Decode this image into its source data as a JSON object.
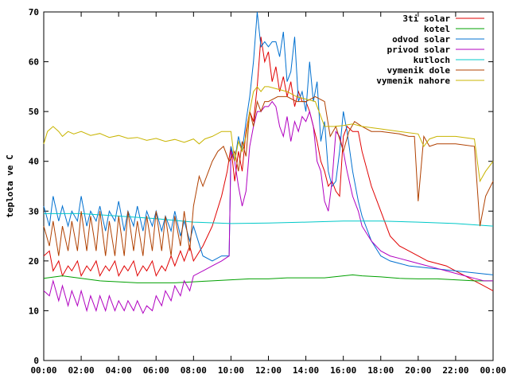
{
  "chart_data": {
    "type": "line",
    "title": "",
    "xlabel": "",
    "ylabel": "teplota ve C",
    "xlim": [
      0,
      24
    ],
    "ylim": [
      0,
      70
    ],
    "grid": false,
    "legend_position": "top-right",
    "x_ticks": [
      "00:00",
      "02:00",
      "04:00",
      "06:00",
      "08:00",
      "10:00",
      "12:00",
      "14:00",
      "16:00",
      "18:00",
      "20:00",
      "22:00",
      "00:00"
    ],
    "y_ticks": [
      "0",
      "10",
      "20",
      "30",
      "40",
      "50",
      "60",
      "70"
    ],
    "series": [
      {
        "name": "3ti solar",
        "color": "#e00000",
        "x": [
          0,
          0.3,
          0.5,
          0.8,
          1.0,
          1.3,
          1.5,
          1.8,
          2.0,
          2.3,
          2.5,
          2.8,
          3.0,
          3.3,
          3.5,
          3.8,
          4.0,
          4.3,
          4.5,
          4.8,
          5.0,
          5.3,
          5.5,
          5.8,
          6.0,
          6.3,
          6.5,
          6.8,
          7.0,
          7.3,
          7.5,
          7.8,
          8.0,
          8.5,
          9.0,
          9.5,
          9.8,
          10.0,
          10.2,
          10.4,
          10.6,
          10.8,
          11.0,
          11.2,
          11.4,
          11.6,
          11.8,
          12.0,
          12.2,
          12.4,
          12.6,
          12.8,
          13.0,
          13.2,
          13.4,
          13.6,
          13.8,
          14.0,
          14.2,
          14.4,
          14.6,
          14.8,
          15.0,
          15.2,
          15.4,
          15.6,
          15.8,
          16.0,
          16.2,
          16.5,
          16.8,
          17.0,
          17.5,
          18.0,
          18.5,
          19.0,
          19.5,
          20.0,
          20.5,
          21.0,
          21.5,
          22.0,
          22.5,
          23.0,
          23.5,
          24.0
        ],
        "y": [
          21,
          22,
          18,
          20,
          17,
          19,
          18,
          20,
          17,
          19,
          18,
          20,
          17,
          19,
          18,
          20,
          17,
          19,
          18,
          20,
          17,
          19,
          18,
          20,
          17,
          19,
          18,
          21,
          19,
          22,
          20,
          23,
          20,
          23,
          27,
          33,
          38,
          43,
          36,
          42,
          38,
          46,
          50,
          48,
          55,
          65,
          60,
          62,
          56,
          59,
          54,
          57,
          53,
          56,
          51,
          54,
          52,
          52,
          50,
          47,
          44,
          40,
          38,
          35,
          36,
          34,
          33,
          45,
          47,
          46,
          46,
          42,
          35,
          30,
          25,
          23,
          22,
          21,
          20,
          19.5,
          19,
          18,
          17,
          16,
          15,
          14
        ]
      },
      {
        "name": "kotel",
        "color": "#00a000",
        "x": [
          0,
          1,
          2,
          3,
          4,
          5,
          6,
          7,
          8,
          9,
          10,
          11,
          12,
          13,
          14,
          15,
          16,
          16.5,
          17,
          18,
          19,
          20,
          21,
          22,
          23,
          24
        ],
        "y": [
          16.5,
          17,
          16.5,
          16,
          15.8,
          15.6,
          15.6,
          15.6,
          15.8,
          16,
          16.2,
          16.4,
          16.4,
          16.6,
          16.6,
          16.6,
          17.0,
          17.2,
          17.0,
          16.8,
          16.5,
          16.4,
          16.4,
          16.2,
          16.0,
          16.0
        ]
      },
      {
        "name": "odvod solar",
        "color": "#0070d0",
        "x": [
          0,
          0.3,
          0.5,
          0.8,
          1.0,
          1.3,
          1.5,
          1.8,
          2.0,
          2.3,
          2.5,
          2.8,
          3.0,
          3.3,
          3.5,
          3.8,
          4.0,
          4.3,
          4.5,
          4.8,
          5.0,
          5.3,
          5.5,
          5.8,
          6.0,
          6.3,
          6.5,
          6.8,
          7.0,
          7.3,
          7.5,
          7.8,
          8.0,
          8.5,
          9.0,
          9.5,
          9.9,
          10.0,
          10.2,
          10.4,
          10.6,
          10.8,
          11.0,
          11.2,
          11.4,
          11.6,
          11.8,
          12.0,
          12.2,
          12.4,
          12.6,
          12.8,
          13.0,
          13.2,
          13.4,
          13.6,
          13.8,
          14.0,
          14.2,
          14.4,
          14.6,
          14.8,
          15.0,
          15.2,
          15.4,
          15.6,
          15.8,
          16.0,
          16.2,
          16.5,
          16.8,
          17.0,
          17.5,
          18.0,
          18.5,
          19.0,
          19.5,
          20.0,
          20.5,
          21.0,
          21.5,
          22.0,
          22.5,
          23.0,
          23.5,
          24.0
        ],
        "y": [
          31,
          27,
          33,
          28,
          31,
          27,
          30,
          28,
          33,
          27,
          30,
          28,
          31,
          26,
          30,
          28,
          32,
          26,
          30,
          27,
          31,
          26,
          30,
          27,
          30,
          26,
          29,
          26,
          30,
          25,
          28,
          24,
          27,
          21,
          20,
          21,
          21,
          43,
          40,
          45,
          42,
          48,
          53,
          60,
          70,
          63,
          64,
          63,
          64,
          64,
          61,
          66,
          56,
          58,
          65,
          52,
          54,
          50,
          60,
          52,
          56,
          44,
          48,
          38,
          35,
          36,
          42,
          50,
          46,
          38,
          32,
          29,
          24,
          21,
          20,
          19.5,
          19,
          18.8,
          18.6,
          18.4,
          18.2,
          18,
          17.8,
          17.6,
          17.4,
          17.2
        ]
      },
      {
        "name": "privod solar",
        "color": "#b000c0",
        "x": [
          0,
          0.3,
          0.5,
          0.8,
          1.0,
          1.3,
          1.5,
          1.8,
          2.0,
          2.3,
          2.5,
          2.8,
          3.0,
          3.3,
          3.5,
          3.8,
          4.0,
          4.3,
          4.5,
          4.8,
          5.0,
          5.3,
          5.5,
          5.8,
          6.0,
          6.3,
          6.5,
          6.8,
          7.0,
          7.3,
          7.5,
          7.8,
          8.0,
          8.5,
          9.0,
          9.5,
          9.9,
          10.0,
          10.2,
          10.4,
          10.6,
          10.8,
          11.0,
          11.2,
          11.4,
          11.6,
          11.8,
          12.0,
          12.2,
          12.4,
          12.6,
          12.8,
          13.0,
          13.2,
          13.4,
          13.6,
          13.8,
          14.0,
          14.2,
          14.4,
          14.6,
          14.8,
          15.0,
          15.2,
          15.4,
          15.6,
          15.8,
          16.0,
          16.2,
          16.5,
          16.8,
          17.0,
          17.5,
          18.0,
          18.5,
          19.0,
          19.5,
          20.0,
          20.5,
          21.0,
          21.5,
          22.0,
          22.5,
          23.0,
          23.5,
          24.0
        ],
        "y": [
          14,
          13,
          16,
          12,
          15,
          11,
          14,
          11,
          14,
          10,
          13,
          10,
          13,
          10,
          13,
          10,
          12,
          10,
          12,
          10,
          12,
          9.5,
          11,
          10,
          13,
          11,
          14,
          12,
          15,
          13,
          16,
          14,
          17,
          18,
          19,
          20,
          21,
          42,
          40,
          35,
          31,
          34,
          43,
          47,
          50,
          50,
          51,
          51,
          52,
          51,
          47,
          45,
          49,
          44,
          48,
          46,
          49,
          48,
          50,
          47,
          40,
          38,
          32,
          30,
          36,
          46,
          45,
          42,
          38,
          33,
          30,
          27,
          24,
          22,
          21,
          20.5,
          20,
          19.5,
          19,
          18.5,
          18,
          17.5,
          17,
          16.5,
          16,
          16
        ]
      },
      {
        "name": "kutloch",
        "color": "#00c8c8",
        "x": [
          0,
          2,
          4,
          6,
          8,
          10,
          12,
          14,
          16,
          18,
          20,
          22,
          24
        ],
        "y": [
          29.5,
          29.5,
          29,
          28.5,
          27.8,
          27.5,
          27.6,
          27.8,
          28.0,
          28.0,
          27.8,
          27.5,
          27.0
        ]
      },
      {
        "name": "vymenik dole",
        "color": "#b04000",
        "x": [
          0,
          0.3,
          0.5,
          0.8,
          1.0,
          1.3,
          1.5,
          1.8,
          2.0,
          2.3,
          2.5,
          2.8,
          3.0,
          3.3,
          3.5,
          3.8,
          4.0,
          4.3,
          4.5,
          4.8,
          5.0,
          5.3,
          5.5,
          5.8,
          6.0,
          6.3,
          6.5,
          6.8,
          7.0,
          7.3,
          7.5,
          7.8,
          8.0,
          8.3,
          8.5,
          8.8,
          9.0,
          9.3,
          9.6,
          9.9,
          10.2,
          10.4,
          10.6,
          10.8,
          11.0,
          11.2,
          11.4,
          11.6,
          11.8,
          12.0,
          12.5,
          13.0,
          13.5,
          14.0,
          14.5,
          15.0,
          15.3,
          15.6,
          16.0,
          16.3,
          16.6,
          17.0,
          17.5,
          18.0,
          19.0,
          19.5,
          19.8,
          20.0,
          20.3,
          20.6,
          21.0,
          22.0,
          23.0,
          23.3,
          23.6,
          24.0
        ],
        "y": [
          27,
          23,
          28,
          21,
          27,
          22,
          28,
          22,
          30,
          22,
          29,
          22,
          30,
          21,
          28,
          21,
          29,
          21,
          30,
          22,
          28,
          21,
          29,
          22,
          30,
          22,
          29,
          21,
          29,
          23,
          30,
          22,
          31,
          37,
          35,
          38,
          40,
          42,
          43,
          40,
          42,
          38,
          44,
          41,
          50,
          47,
          52,
          50,
          52,
          52,
          53,
          53,
          52,
          52,
          53,
          52,
          45,
          47,
          42,
          46,
          48,
          47,
          46,
          46,
          45.5,
          45,
          45,
          32,
          45,
          43,
          43.5,
          43.5,
          43,
          27,
          33,
          36
        ]
      },
      {
        "name": "vymenik nahore",
        "color": "#c8b400",
        "x": [
          0,
          0.2,
          0.5,
          0.8,
          1.0,
          1.3,
          1.6,
          2.0,
          2.5,
          3.0,
          3.5,
          4.0,
          4.5,
          5.0,
          5.5,
          6.0,
          6.5,
          7.0,
          7.5,
          8.0,
          8.3,
          8.6,
          9.0,
          9.5,
          10.0,
          10.2,
          10.4,
          10.6,
          10.8,
          11.0,
          11.2,
          11.4,
          11.6,
          11.8,
          12.0,
          12.5,
          13.0,
          13.5,
          14.0,
          14.5,
          15.0,
          15.5,
          16.0,
          16.5,
          17.0,
          18.0,
          19.0,
          20.0,
          20.3,
          20.6,
          21.0,
          22.0,
          23.0,
          23.3,
          23.6,
          24.0
        ],
        "y": [
          43.5,
          46,
          47,
          46,
          45,
          46,
          45.5,
          46,
          45.2,
          45.6,
          44.8,
          45.2,
          44.6,
          44.8,
          44.2,
          44.6,
          44,
          44.4,
          43.8,
          44.5,
          43.5,
          44.5,
          45,
          46,
          46,
          40,
          44,
          42,
          45,
          50,
          54,
          55,
          54,
          55,
          55,
          54.5,
          54,
          53,
          52.5,
          52,
          47,
          47,
          47.2,
          47.5,
          47,
          46.5,
          46,
          45.5,
          43,
          44.5,
          45,
          45,
          44.5,
          36,
          38,
          40
        ]
      }
    ]
  }
}
